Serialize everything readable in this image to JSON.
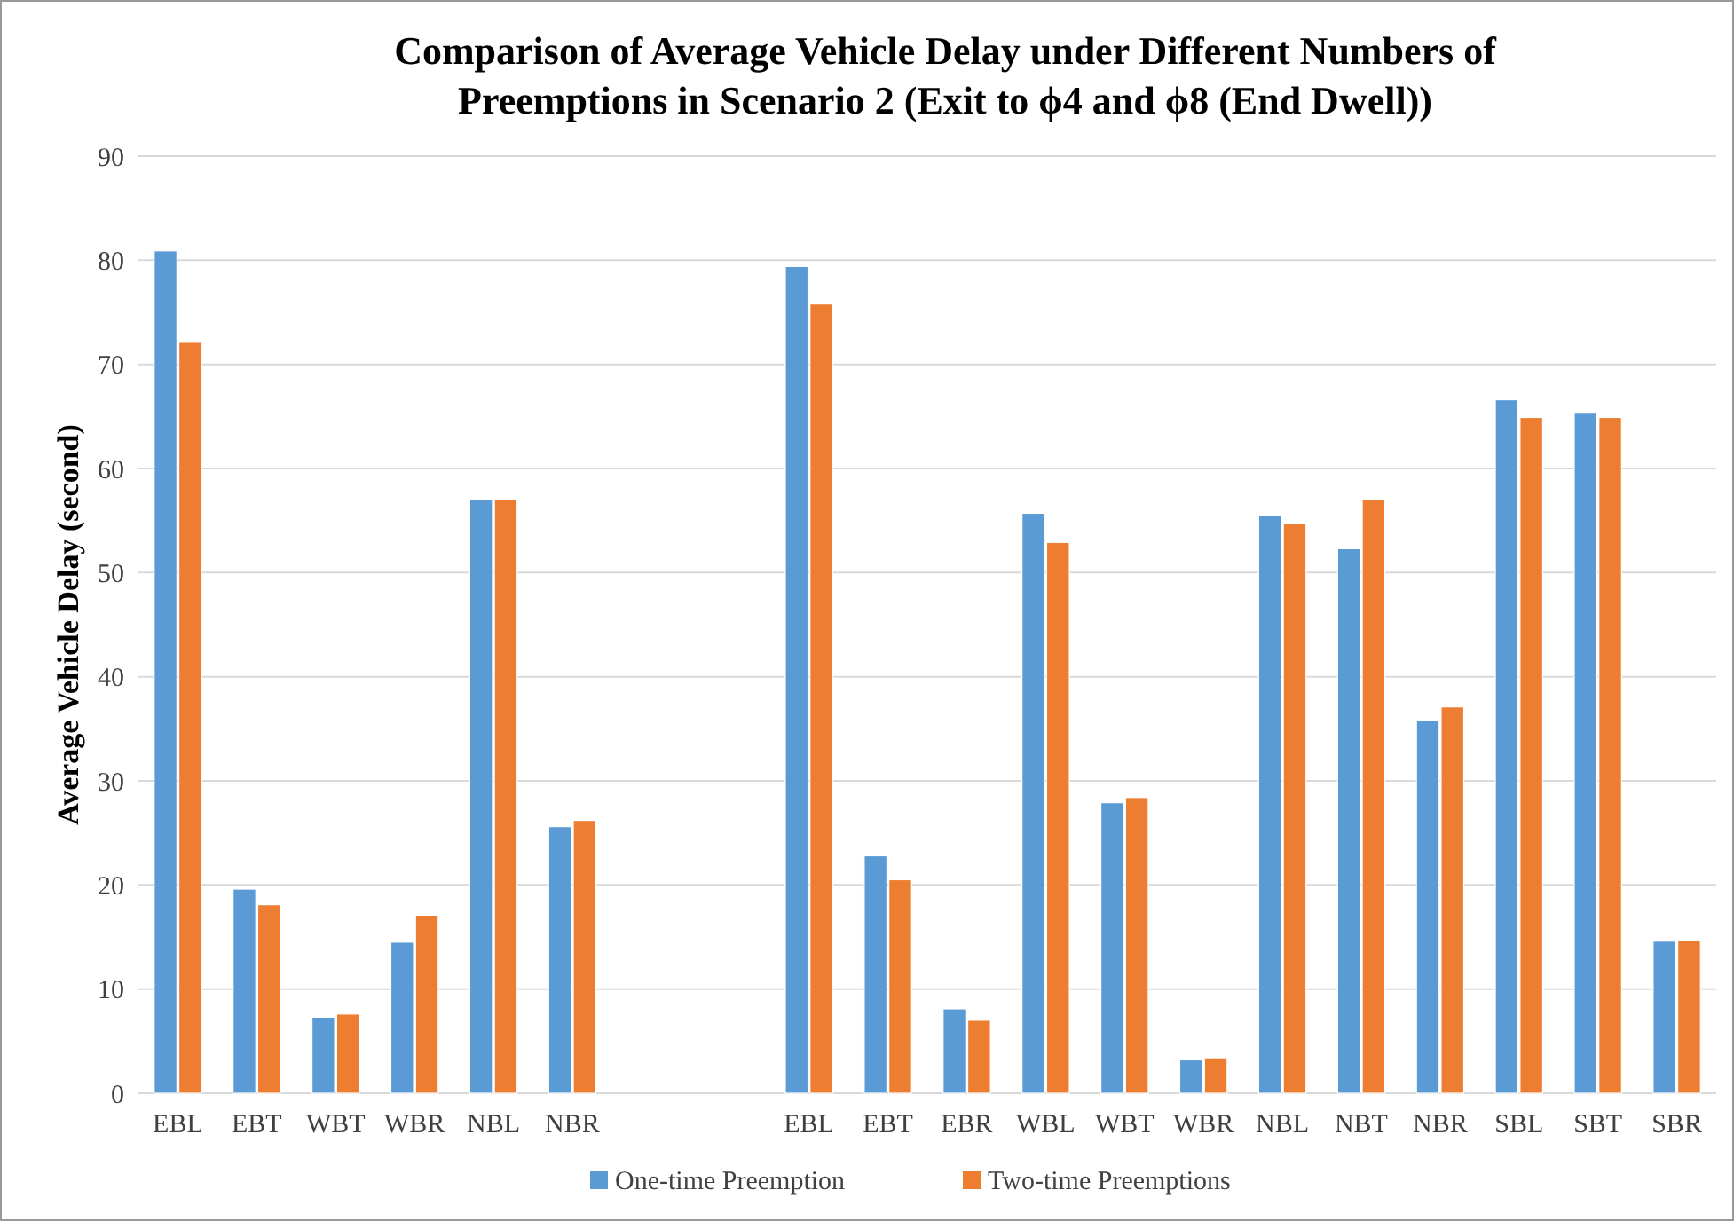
{
  "chart_data": {
    "type": "bar",
    "title": "Comparison of Average Vehicle Delay under Different Numbers of Preemptions in Scenario 2 (Exit to ϕ4 and ϕ8 (End Dwell))",
    "ylabel": "Average Vehicle Delay (second)",
    "categories": [
      "EBL",
      "EBT",
      "WBT",
      "WBR",
      "NBL",
      "NBR",
      null,
      null,
      "EBL",
      "EBT",
      "EBR",
      "WBL",
      "WBT",
      "WBR",
      "NBL",
      "NBT",
      "NBR",
      "SBL",
      "SBT",
      "SBR"
    ],
    "series": [
      {
        "name": "One-time Preemption",
        "color": "#5b9bd5",
        "values": [
          80.9,
          19.6,
          7.3,
          14.5,
          57.0,
          25.6,
          null,
          null,
          79.4,
          22.8,
          8.1,
          55.7,
          27.9,
          3.2,
          55.5,
          52.3,
          35.8,
          66.6,
          65.4,
          14.6
        ]
      },
      {
        "name": "Two-time Preemptions",
        "color": "#ed7d31",
        "values": [
          72.2,
          18.1,
          7.6,
          17.1,
          57.0,
          26.2,
          null,
          null,
          75.8,
          20.5,
          7.0,
          52.9,
          28.4,
          3.4,
          54.7,
          57.0,
          37.1,
          64.9,
          64.9,
          14.7
        ]
      }
    ],
    "ylim": [
      0,
      90
    ],
    "yticks": [
      0,
      10,
      20,
      30,
      40,
      50,
      60,
      70,
      80,
      90
    ],
    "grid": "y",
    "legend": "bottom"
  }
}
